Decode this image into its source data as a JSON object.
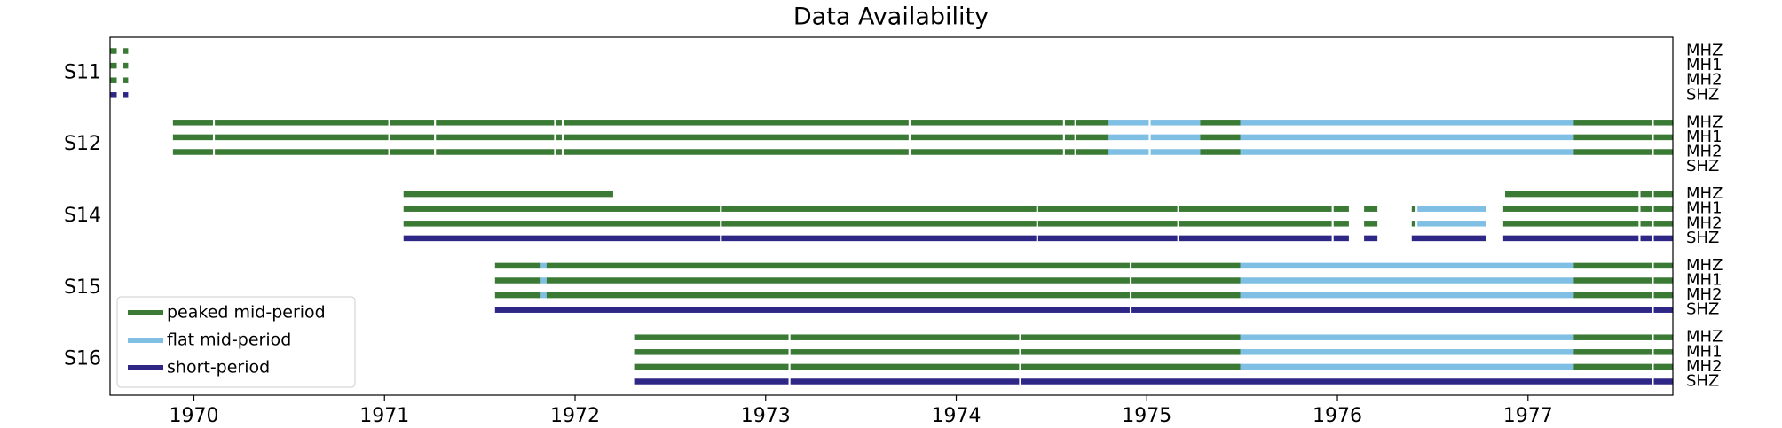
{
  "chart_data": {
    "type": "timeline",
    "title": "Data Availability",
    "xlim": [
      1969.56,
      1977.76
    ],
    "xticks": [
      1970,
      1971,
      1972,
      1973,
      1974,
      1975,
      1976,
      1977
    ],
    "legend": "lower left",
    "series": [
      {
        "name": "peaked mid-period",
        "color": "#3a7a35"
      },
      {
        "name": "flat mid-period",
        "color": "#7fbfe4"
      },
      {
        "name": "short-period",
        "color": "#2f2786"
      }
    ],
    "stations": [
      {
        "name": "S11",
        "channels": [
          {
            "name": "MHZ",
            "segments": [
              [
                1969.56,
                1969.595,
                0
              ],
              [
                1969.63,
                1969.655,
                0
              ]
            ]
          },
          {
            "name": "MH1",
            "segments": [
              [
                1969.56,
                1969.595,
                0
              ],
              [
                1969.63,
                1969.655,
                0
              ]
            ]
          },
          {
            "name": "MH2",
            "segments": [
              [
                1969.56,
                1969.595,
                0
              ],
              [
                1969.63,
                1969.655,
                0
              ]
            ]
          },
          {
            "name": "SHZ",
            "segments": [
              [
                1969.56,
                1969.595,
                2
              ],
              [
                1969.63,
                1969.655,
                2
              ]
            ]
          }
        ]
      },
      {
        "name": "S12",
        "channels": [
          {
            "name": "MHZ",
            "segments": [
              [
                1969.89,
                1970.1,
                0
              ],
              [
                1970.11,
                1971.02,
                0
              ],
              [
                1971.03,
                1971.26,
                0
              ],
              [
                1971.27,
                1971.89,
                0
              ],
              [
                1971.9,
                1971.93,
                0
              ],
              [
                1971.94,
                1973.75,
                0
              ],
              [
                1973.76,
                1974.56,
                0
              ],
              [
                1974.57,
                1974.62,
                0
              ],
              [
                1974.63,
                1974.8,
                0
              ],
              [
                1974.8,
                1975.01,
                1
              ],
              [
                1975.02,
                1975.28,
                1
              ],
              [
                1975.28,
                1975.49,
                0
              ],
              [
                1975.49,
                1977.24,
                1
              ],
              [
                1977.24,
                1977.65,
                0
              ],
              [
                1977.66,
                1977.76,
                0
              ]
            ]
          },
          {
            "name": "MH1",
            "segments": [
              [
                1969.89,
                1970.1,
                0
              ],
              [
                1970.11,
                1971.02,
                0
              ],
              [
                1971.03,
                1971.26,
                0
              ],
              [
                1971.27,
                1971.89,
                0
              ],
              [
                1971.9,
                1971.93,
                0
              ],
              [
                1971.94,
                1973.75,
                0
              ],
              [
                1973.76,
                1974.56,
                0
              ],
              [
                1974.57,
                1974.62,
                0
              ],
              [
                1974.63,
                1974.8,
                0
              ],
              [
                1974.8,
                1975.01,
                1
              ],
              [
                1975.02,
                1975.28,
                1
              ],
              [
                1975.28,
                1975.49,
                0
              ],
              [
                1975.49,
                1977.24,
                1
              ],
              [
                1977.24,
                1977.65,
                0
              ],
              [
                1977.66,
                1977.76,
                0
              ]
            ]
          },
          {
            "name": "MH2",
            "segments": [
              [
                1969.89,
                1970.1,
                0
              ],
              [
                1970.11,
                1971.02,
                0
              ],
              [
                1971.03,
                1971.26,
                0
              ],
              [
                1971.27,
                1971.89,
                0
              ],
              [
                1971.9,
                1971.93,
                0
              ],
              [
                1971.94,
                1973.75,
                0
              ],
              [
                1973.76,
                1974.56,
                0
              ],
              [
                1974.57,
                1974.62,
                0
              ],
              [
                1974.63,
                1974.8,
                0
              ],
              [
                1974.8,
                1975.01,
                1
              ],
              [
                1975.02,
                1975.28,
                1
              ],
              [
                1975.28,
                1975.49,
                0
              ],
              [
                1975.49,
                1977.24,
                1
              ],
              [
                1977.24,
                1977.65,
                0
              ],
              [
                1977.66,
                1977.76,
                0
              ]
            ]
          },
          {
            "name": "SHZ",
            "segments": []
          }
        ]
      },
      {
        "name": "S14",
        "channels": [
          {
            "name": "MHZ",
            "segments": [
              [
                1971.1,
                1972.2,
                0
              ],
              [
                1976.88,
                1977.58,
                0
              ],
              [
                1977.59,
                1977.65,
                0
              ],
              [
                1977.66,
                1977.76,
                0
              ]
            ]
          },
          {
            "name": "MH1",
            "segments": [
              [
                1971.1,
                1972.76,
                0
              ],
              [
                1972.77,
                1974.42,
                0
              ],
              [
                1974.43,
                1975.16,
                0
              ],
              [
                1975.17,
                1975.97,
                0
              ],
              [
                1975.98,
                1976.06,
                0
              ],
              [
                1976.14,
                1976.21,
                0
              ],
              [
                1976.39,
                1976.41,
                0
              ],
              [
                1976.42,
                1976.78,
                1
              ],
              [
                1976.87,
                1977.58,
                0
              ],
              [
                1977.59,
                1977.65,
                0
              ],
              [
                1977.66,
                1977.76,
                0
              ]
            ]
          },
          {
            "name": "MH2",
            "segments": [
              [
                1971.1,
                1972.76,
                0
              ],
              [
                1972.77,
                1974.42,
                0
              ],
              [
                1974.43,
                1975.16,
                0
              ],
              [
                1975.17,
                1975.97,
                0
              ],
              [
                1975.98,
                1976.06,
                0
              ],
              [
                1976.14,
                1976.21,
                0
              ],
              [
                1976.39,
                1976.41,
                0
              ],
              [
                1976.42,
                1976.78,
                1
              ],
              [
                1976.87,
                1977.58,
                0
              ],
              [
                1977.59,
                1977.65,
                0
              ],
              [
                1977.66,
                1977.76,
                0
              ]
            ]
          },
          {
            "name": "SHZ",
            "segments": [
              [
                1971.1,
                1972.76,
                2
              ],
              [
                1972.77,
                1974.42,
                2
              ],
              [
                1974.43,
                1975.16,
                2
              ],
              [
                1975.17,
                1975.97,
                2
              ],
              [
                1975.98,
                1976.06,
                2
              ],
              [
                1976.14,
                1976.21,
                2
              ],
              [
                1976.39,
                1976.78,
                2
              ],
              [
                1976.87,
                1977.58,
                2
              ],
              [
                1977.59,
                1977.65,
                2
              ],
              [
                1977.66,
                1977.76,
                2
              ]
            ]
          }
        ]
      },
      {
        "name": "S15",
        "channels": [
          {
            "name": "MHZ",
            "segments": [
              [
                1971.58,
                1971.82,
                0
              ],
              [
                1971.82,
                1971.85,
                1
              ],
              [
                1971.85,
                1974.91,
                0
              ],
              [
                1974.92,
                1975.49,
                0
              ],
              [
                1975.49,
                1977.24,
                1
              ],
              [
                1977.24,
                1977.65,
                0
              ],
              [
                1977.66,
                1977.76,
                0
              ]
            ]
          },
          {
            "name": "MH1",
            "segments": [
              [
                1971.58,
                1971.82,
                0
              ],
              [
                1971.82,
                1971.85,
                1
              ],
              [
                1971.85,
                1974.91,
                0
              ],
              [
                1974.92,
                1975.49,
                0
              ],
              [
                1975.49,
                1977.24,
                1
              ],
              [
                1977.24,
                1977.65,
                0
              ],
              [
                1977.66,
                1977.76,
                0
              ]
            ]
          },
          {
            "name": "MH2",
            "segments": [
              [
                1971.58,
                1971.82,
                0
              ],
              [
                1971.82,
                1971.85,
                1
              ],
              [
                1971.85,
                1974.91,
                0
              ],
              [
                1974.92,
                1975.49,
                0
              ],
              [
                1975.49,
                1977.24,
                1
              ],
              [
                1977.24,
                1977.65,
                0
              ],
              [
                1977.66,
                1977.76,
                0
              ]
            ]
          },
          {
            "name": "SHZ",
            "segments": [
              [
                1971.58,
                1974.91,
                2
              ],
              [
                1974.92,
                1977.65,
                2
              ],
              [
                1977.66,
                1977.76,
                2
              ]
            ]
          }
        ]
      },
      {
        "name": "S16",
        "channels": [
          {
            "name": "MHZ",
            "segments": [
              [
                1972.31,
                1973.12,
                0
              ],
              [
                1973.13,
                1974.33,
                0
              ],
              [
                1974.34,
                1975.49,
                0
              ],
              [
                1975.49,
                1977.24,
                1
              ],
              [
                1977.24,
                1977.65,
                0
              ],
              [
                1977.66,
                1977.76,
                0
              ]
            ]
          },
          {
            "name": "MH1",
            "segments": [
              [
                1972.31,
                1973.12,
                0
              ],
              [
                1973.13,
                1974.33,
                0
              ],
              [
                1974.34,
                1975.49,
                0
              ],
              [
                1975.49,
                1977.24,
                1
              ],
              [
                1977.24,
                1977.65,
                0
              ],
              [
                1977.66,
                1977.76,
                0
              ]
            ]
          },
          {
            "name": "MH2",
            "segments": [
              [
                1972.31,
                1973.12,
                0
              ],
              [
                1973.13,
                1974.33,
                0
              ],
              [
                1974.34,
                1975.49,
                0
              ],
              [
                1975.49,
                1977.24,
                1
              ],
              [
                1977.24,
                1977.65,
                0
              ],
              [
                1977.66,
                1977.76,
                0
              ]
            ]
          },
          {
            "name": "SHZ",
            "segments": [
              [
                1972.31,
                1973.12,
                2
              ],
              [
                1973.13,
                1974.33,
                2
              ],
              [
                1974.34,
                1977.65,
                2
              ],
              [
                1977.66,
                1977.76,
                2
              ]
            ]
          }
        ]
      }
    ]
  }
}
